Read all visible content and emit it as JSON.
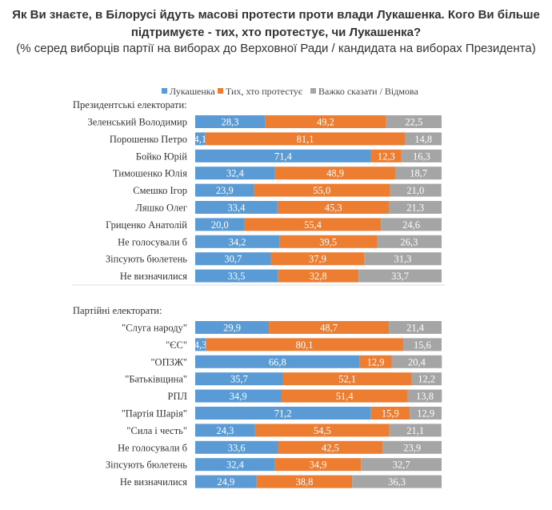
{
  "title_line1": "Як Ви знаєте, в Білорусі йдуть масові протести проти влади Лукашенка. Кого Ви більше",
  "title_line2": "підтримуєте - тих, хто протестує, чи Лукашенка?",
  "subtitle": "(% серед виборців партії на виборах до Верховної Ради / кандидата на виборах Президента)",
  "chart_data": {
    "type": "bar",
    "orientation": "horizontal",
    "stacked": "100%",
    "legend_position": "top",
    "legend": [
      {
        "name": "Лукашенка",
        "color": "#5b9bd5"
      },
      {
        "name": "Тих, хто протестує",
        "color": "#ed7d31"
      },
      {
        "name": "Важко сказати / Відмова",
        "color": "#a5a5a5"
      }
    ],
    "groups": [
      {
        "label": "Президентські електорати:",
        "categories": [
          "Зеленський Володимир",
          "Порошенко Петро",
          "Бойко Юрій",
          "Тимошенко Юлія",
          "Смешко Ігор",
          "Ляшко Олег",
          "Гриценко Анатолій",
          "Не голосували б",
          "Зіпсують бюлетень",
          "Не визначилися"
        ],
        "series": [
          {
            "name": "Лукашенка",
            "values": [
              28.3,
              4.1,
              71.4,
              32.4,
              23.9,
              33.4,
              20.0,
              34.2,
              30.7,
              33.5
            ]
          },
          {
            "name": "Тих, хто протестує",
            "values": [
              49.2,
              81.1,
              12.3,
              48.9,
              55.0,
              45.3,
              55.4,
              39.5,
              37.9,
              32.8
            ]
          },
          {
            "name": "Важко сказати / Відмова",
            "values": [
              22.5,
              14.8,
              16.3,
              18.7,
              21.0,
              21.3,
              24.6,
              26.3,
              31.3,
              33.7
            ]
          }
        ]
      },
      {
        "label": "Партійні електорати:",
        "categories": [
          "\"Слуга народу\"",
          "\"ЄС\"",
          "\"ОПЗЖ\"",
          "\"Батьківщина\"",
          "РПЛ",
          "\"Партія Шарія\"",
          "\"Сила і честь\"",
          "Не голосували б",
          "Зіпсують бюлетень",
          "Не визначилися"
        ],
        "series": [
          {
            "name": "Лукашенка",
            "values": [
              29.9,
              4.3,
              66.8,
              35.7,
              34.9,
              71.2,
              24.3,
              33.6,
              32.4,
              24.9
            ]
          },
          {
            "name": "Тих, хто протестує",
            "values": [
              48.7,
              80.1,
              12.9,
              52.1,
              51.4,
              15.9,
              54.5,
              42.5,
              34.9,
              38.8
            ]
          },
          {
            "name": "Важко сказати / Відмова",
            "values": [
              21.4,
              15.6,
              20.4,
              12.2,
              13.8,
              12.9,
              21.1,
              23.9,
              32.7,
              36.3
            ]
          }
        ]
      }
    ]
  }
}
